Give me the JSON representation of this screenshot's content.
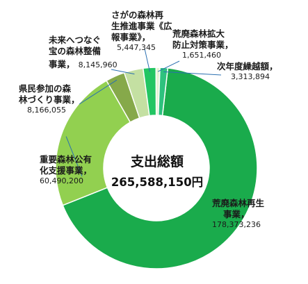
{
  "chart_data": {
    "type": "pie",
    "center_title": "支出総額",
    "center_value": "265,588,150円",
    "slices": [
      {
        "name_lines": [
          "荒廃森林再生",
          "事業，"
        ],
        "value_text": "178,373,236",
        "value": 178373236,
        "color": "#1aab4c"
      },
      {
        "name_lines": [
          "重要森林公有",
          "化支援事業，"
        ],
        "value_text": "60,490,200",
        "value": 60490200,
        "color": "#92d050"
      },
      {
        "name_lines": [
          "県民参加の森",
          "林づくり事業，"
        ],
        "value_text": "8,166,055",
        "value": 8166055,
        "color": "#86a94a"
      },
      {
        "name_lines": [
          "未来へつなぐ",
          "宝の森林整備",
          "事業，"
        ],
        "value_text": "8,145,960",
        "value": 8145960,
        "color": "#c4e0a2"
      },
      {
        "name_lines": [
          "さがの森林再",
          "生推進事業《広",
          "報事業》，"
        ],
        "value_text": "5,447,345",
        "value": 5447345,
        "color": "#22c562"
      },
      {
        "name_lines": [
          "荒廃森林拡大",
          "防止対策事業，"
        ],
        "value_text": "1,651,460",
        "value": 1651460,
        "color": "#e3f2d2"
      },
      {
        "name_lines": [
          "次年度繰越額，"
        ],
        "value_text": "3,313,894",
        "value": 3313894,
        "color": "#2ec27e"
      }
    ]
  }
}
